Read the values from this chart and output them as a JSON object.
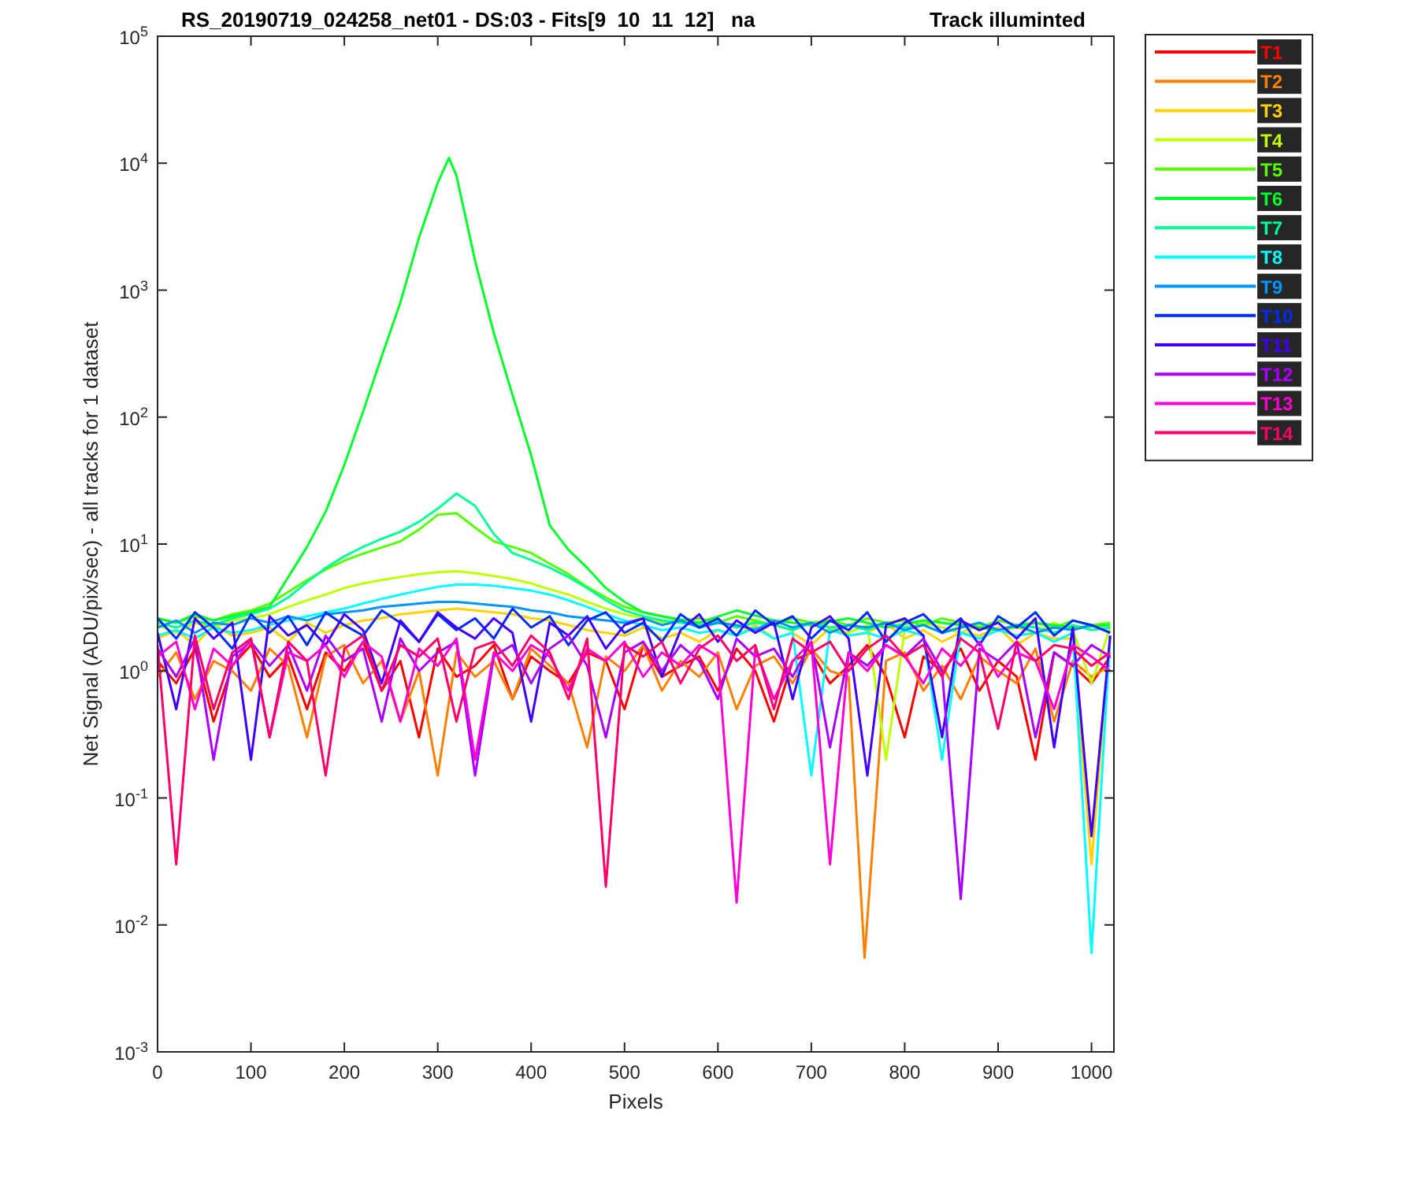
{
  "chart_data": {
    "type": "line",
    "title": "RS_20190719_024258_net01 - DS:03 - Fits[9  10  11  12]   na",
    "subtitle": "Track illuminted",
    "xlabel": "Pixels",
    "ylabel": "Net Signal (ADU/pix/sec) - all tracks for 1 dataset",
    "log": "y",
    "grid": false,
    "legend": "right",
    "marker": "none",
    "line_style": "solid",
    "xlim": [
      0,
      1024
    ],
    "xticks": [
      0,
      100,
      200,
      300,
      400,
      500,
      600,
      700,
      800,
      900,
      1000
    ],
    "ylim": [
      0.001,
      100000
    ],
    "yticks": [
      {
        "value": 0.001,
        "label": "10$^{-3}$"
      },
      {
        "value": 0.01,
        "label": "10$^{-2}$"
      },
      {
        "value": 0.1,
        "label": "10$^{-1}$"
      },
      {
        "value": 1,
        "label": "10$^{0}$"
      },
      {
        "value": 10,
        "label": "10$^{1}$"
      },
      {
        "value": 100,
        "label": "10$^{2}$"
      },
      {
        "value": 1000,
        "label": "10$^{3}$"
      },
      {
        "value": 10000,
        "label": "10$^{4}$"
      },
      {
        "value": 100000,
        "label": "10$^{5}$"
      }
    ],
    "x": [
      0,
      20,
      40,
      60,
      80,
      100,
      120,
      140,
      160,
      180,
      200,
      220,
      240,
      260,
      280,
      300,
      320,
      340,
      360,
      380,
      400,
      420,
      440,
      460,
      480,
      500,
      520,
      540,
      560,
      580,
      600,
      620,
      640,
      660,
      680,
      700,
      720,
      740,
      760,
      780,
      800,
      820,
      840,
      860,
      880,
      900,
      920,
      940,
      960,
      980,
      1000,
      1020
    ],
    "series": [
      {
        "name": "T1",
        "color": "#ff0000",
        "values": [
          1.2,
          0.8,
          1.5,
          0.4,
          1.1,
          1.6,
          0.9,
          1.3,
          0.5,
          1.4,
          1.0,
          1.7,
          0.7,
          1.2,
          0.3,
          1.5,
          0.9,
          1.1,
          1.6,
          0.6,
          1.3,
          1.0,
          0.8,
          1.4,
          1.2,
          0.5,
          1.6,
          0.9,
          1.1,
          1.3,
          0.7,
          1.5,
          1.0,
          0.4,
          1.2,
          1.4,
          0.8,
          1.1,
          1.6,
          0.9,
          0.3,
          1.3,
          1.0,
          1.5,
          0.7,
          1.2,
          0.9,
          0.2,
          1.4,
          1.1,
          0.8,
          1.3
        ]
      },
      {
        "name": "T2",
        "color": "#ff8000",
        "x": [
          0,
          20,
          40,
          60,
          80,
          100,
          120,
          140,
          160,
          180,
          200,
          220,
          240,
          260,
          280,
          300,
          320,
          340,
          360,
          380,
          400,
          420,
          440,
          460,
          480,
          500,
          520,
          540,
          560,
          580,
          600,
          620,
          640,
          660,
          680,
          700,
          720,
          740,
          757,
          780,
          800,
          820,
          840,
          860,
          880,
          900,
          920,
          940,
          960,
          980,
          1000,
          1020
        ],
        "values": [
          0.9,
          1.4,
          0.6,
          1.2,
          1.0,
          0.7,
          1.5,
          1.1,
          0.3,
          1.3,
          1.6,
          0.8,
          1.2,
          0.4,
          1.0,
          0.15,
          1.4,
          0.9,
          1.2,
          0.6,
          1.5,
          1.1,
          0.8,
          0.25,
          1.3,
          1.0,
          1.6,
          0.7,
          1.2,
          0.9,
          1.4,
          0.5,
          1.1,
          1.3,
          0.8,
          1.5,
          1.0,
          0.9,
          0.0055,
          1.2,
          1.4,
          0.7,
          1.1,
          0.6,
          1.3,
          1.0,
          0.8,
          1.5,
          0.4,
          1.2,
          0.9,
          1.1
        ]
      },
      {
        "name": "T3",
        "color": "#ffd200",
        "values": [
          1.8,
          2.1,
          1.6,
          2.3,
          1.9,
          2.0,
          2.2,
          1.7,
          2.4,
          2.0,
          2.3,
          2.5,
          2.6,
          2.8,
          2.9,
          3.0,
          3.1,
          3.0,
          2.9,
          2.8,
          2.6,
          2.5,
          2.3,
          2.1,
          2.0,
          1.9,
          2.2,
          1.8,
          2.0,
          1.7,
          2.1,
          1.9,
          2.3,
          1.8,
          2.0,
          1.6,
          2.2,
          1.9,
          2.0,
          2.4,
          1.8,
          2.1,
          1.7,
          2.0,
          1.9,
          2.2,
          1.6,
          2.0,
          1.8,
          1.8,
          0.03,
          1.9
        ]
      },
      {
        "name": "T4",
        "color": "#bfff00",
        "values": [
          2.3,
          2.0,
          2.4,
          2.2,
          2.5,
          2.6,
          2.8,
          3.2,
          3.6,
          4.0,
          4.5,
          4.9,
          5.2,
          5.5,
          5.8,
          6.0,
          6.1,
          5.9,
          5.6,
          5.3,
          4.9,
          4.4,
          4.0,
          3.5,
          3.1,
          2.8,
          2.6,
          2.4,
          2.5,
          2.3,
          2.4,
          2.2,
          2.5,
          2.3,
          2.1,
          2.4,
          2.2,
          2.0,
          2.3,
          0.2,
          2.1,
          2.4,
          2.2,
          2.0,
          2.3,
          2.1,
          2.2,
          2.0,
          2.4,
          2.1,
          0.8,
          2.2
        ]
      },
      {
        "name": "T5",
        "color": "#55ff00",
        "values": [
          2.6,
          2.4,
          2.7,
          2.5,
          2.8,
          3.0,
          3.4,
          4.2,
          5.2,
          6.3,
          7.4,
          8.4,
          9.4,
          10.5,
          13,
          17,
          17.5,
          13.5,
          10.5,
          9.5,
          8.5,
          7,
          5.8,
          4.6,
          3.8,
          3.2,
          2.9,
          2.7,
          2.5,
          2.6,
          2.4,
          2.7,
          2.5,
          2.3,
          2.6,
          2.4,
          2.5,
          2.3,
          2.6,
          2.4,
          2.5,
          2.3,
          2.6,
          2.4,
          2.2,
          2.5,
          2.3,
          2.4,
          2.2,
          2.5,
          2.3,
          2.4
        ]
      },
      {
        "name": "T6",
        "color": "#00ff2b",
        "x": [
          0,
          20,
          40,
          60,
          80,
          100,
          120,
          140,
          160,
          180,
          200,
          220,
          240,
          260,
          280,
          300,
          312,
          320,
          330,
          340,
          360,
          380,
          400,
          420,
          440,
          460,
          480,
          500,
          520,
          540,
          580,
          620,
          660,
          700,
          740,
          780,
          820,
          860,
          900,
          940,
          980,
          1020
        ],
        "values": [
          2.6,
          2.4,
          2.8,
          2.5,
          2.7,
          2.9,
          3.2,
          5.5,
          9.5,
          18,
          42,
          110,
          300,
          800,
          2600,
          7000,
          11000,
          8000,
          3700,
          1700,
          460,
          150,
          50,
          14,
          9,
          6.5,
          4.5,
          3.5,
          2.9,
          2.7,
          2.4,
          3,
          2.5,
          2.3,
          2.6,
          2.2,
          2.5,
          2.3,
          2.1,
          2.4,
          2.2,
          2.3
        ]
      },
      {
        "name": "T7",
        "color": "#00ff95",
        "values": [
          2.4,
          2.2,
          2.5,
          2.3,
          2.6,
          2.8,
          3.1,
          3.8,
          5,
          6.5,
          8,
          9.5,
          11,
          12.5,
          15,
          19,
          25,
          20,
          12,
          8.5,
          7.5,
          6.5,
          5.5,
          4.5,
          3.6,
          3,
          2.7,
          2.5,
          2.4,
          2.3,
          2.5,
          2.2,
          2.4,
          2.3,
          2.1,
          2.4,
          2.2,
          2.3,
          2.1,
          2.4,
          2.2,
          2.3,
          2.0,
          2.2,
          2.4,
          2.1,
          2.3,
          2.2,
          2.0,
          2.3,
          2.1,
          2.2
        ]
      },
      {
        "name": "T8",
        "color": "#00ffff",
        "values": [
          1.9,
          2.1,
          1.8,
          2.2,
          2.0,
          2.1,
          2.3,
          2.5,
          2.7,
          2.9,
          3.1,
          3.4,
          3.7,
          4.0,
          4.3,
          4.6,
          4.8,
          4.8,
          4.7,
          4.5,
          4.3,
          4.0,
          3.6,
          3.2,
          2.8,
          2.5,
          2.3,
          2.1,
          2.2,
          2.0,
          2.1,
          1.9,
          2.2,
          1.8,
          2.0,
          0.15,
          2.1,
          1.9,
          2.0,
          1.8,
          2.1,
          1.9,
          0.2,
          2.0,
          1.8,
          2.1,
          1.9,
          2.0,
          1.7,
          2.0,
          0.006,
          1.9
        ]
      },
      {
        "name": "T9",
        "color": "#0095ff",
        "values": [
          2.2,
          2.5,
          2.0,
          2.4,
          2.3,
          2.6,
          2.4,
          2.7,
          2.5,
          2.8,
          2.9,
          3.0,
          3.2,
          3.3,
          3.4,
          3.5,
          3.5,
          3.4,
          3.3,
          3.2,
          3.0,
          2.9,
          2.7,
          2.6,
          2.5,
          2.4,
          2.6,
          2.3,
          2.5,
          2.2,
          2.4,
          2.3,
          2.1,
          2.5,
          2.2,
          2.4,
          2.0,
          2.3,
          2.2,
          2.4,
          2.1,
          2.3,
          2.0,
          2.2,
          2.4,
          2.1,
          2.3,
          2.0,
          2.2,
          2.1,
          2.3,
          2.0
        ]
      },
      {
        "name": "T10",
        "color": "#002bff",
        "values": [
          2.6,
          1.8,
          2.9,
          2.2,
          1.5,
          2.8,
          2.0,
          2.7,
          1.6,
          2.9,
          2.3,
          1.9,
          3.0,
          2.4,
          1.7,
          2.8,
          2.1,
          2.6,
          1.8,
          3.1,
          2.2,
          2.7,
          1.6,
          2.5,
          2.9,
          2.0,
          2.4,
          1.7,
          2.8,
          2.2,
          2.6,
          1.9,
          3.0,
          2.3,
          2.7,
          1.8,
          2.5,
          2.1,
          2.9,
          1.7,
          2.4,
          2.8,
          2.0,
          2.6,
          1.6,
          2.7,
          2.2,
          2.9,
          1.9,
          2.5,
          2.3,
          2.0
        ]
      },
      {
        "name": "T11",
        "color": "#4000ff",
        "values": [
          2.0,
          0.5,
          2.6,
          1.8,
          2.4,
          0.2,
          2.7,
          1.9,
          2.3,
          1.6,
          2.8,
          2.1,
          0.8,
          2.5,
          1.7,
          2.9,
          2.2,
          1.8,
          2.6,
          2.0,
          0.4,
          2.4,
          1.9,
          2.7,
          1.5,
          2.3,
          2.6,
          0.9,
          2.1,
          2.8,
          1.7,
          2.5,
          2.0,
          2.4,
          0.6,
          2.2,
          2.7,
          1.8,
          0.15,
          2.3,
          2.6,
          1.9,
          0.3,
          2.5,
          2.1,
          2.4,
          1.8,
          2.6,
          0.25,
          2.2,
          0.05,
          1.9
        ]
      },
      {
        "name": "T12",
        "color": "#aa00ff",
        "values": [
          1.5,
          0.9,
          1.8,
          0.2,
          1.3,
          1.7,
          1.1,
          1.6,
          0.7,
          1.9,
          1.2,
          1.5,
          0.4,
          1.8,
          1.0,
          1.4,
          1.7,
          0.15,
          1.3,
          1.6,
          0.8,
          1.5,
          1.9,
          1.1,
          0.3,
          1.4,
          1.7,
          1.0,
          1.6,
          1.2,
          0.6,
          1.8,
          1.3,
          1.5,
          0.9,
          1.7,
          0.25,
          1.4,
          1.1,
          1.6,
          1.3,
          1.8,
          1.0,
          0.016,
          1.5,
          1.2,
          1.7,
          0.3,
          1.4,
          1.1,
          1.6,
          1.3
        ]
      },
      {
        "name": "T13",
        "color": "#ff00d5",
        "values": [
          1.3,
          1.7,
          0.5,
          1.5,
          1.1,
          1.8,
          0.3,
          1.4,
          1.2,
          1.6,
          0.9,
          1.7,
          1.3,
          0.4,
          1.5,
          1.1,
          1.8,
          0.2,
          1.4,
          1.0,
          1.6,
          1.3,
          0.7,
          1.5,
          1.2,
          1.7,
          0.9,
          1.4,
          1.1,
          1.6,
          1.3,
          0.015,
          1.5,
          0.6,
          1.2,
          1.7,
          0.03,
          1.4,
          1.0,
          1.6,
          1.3,
          0.8,
          1.5,
          1.1,
          1.7,
          0.9,
          1.4,
          1.2,
          0.5,
          1.6,
          1.3,
          1.0
        ]
      },
      {
        "name": "T14",
        "color": "#ff006a",
        "values": [
          1.6,
          0.03,
          1.9,
          0.5,
          1.4,
          1.8,
          0.3,
          1.7,
          1.2,
          0.15,
          1.5,
          1.9,
          0.7,
          1.6,
          1.3,
          1.8,
          0.4,
          1.5,
          1.7,
          1.1,
          1.9,
          1.4,
          0.6,
          1.8,
          0.02,
          1.6,
          1.3,
          1.7,
          0.8,
          1.5,
          1.9,
          1.2,
          1.6,
          0.5,
          1.8,
          1.4,
          1.7,
          1.0,
          1.5,
          1.9,
          1.3,
          1.6,
          0.9,
          1.8,
          1.4,
          0.35,
          1.7,
          1.2,
          1.6,
          1.5,
          1.1,
          1.4
        ]
      }
    ]
  }
}
